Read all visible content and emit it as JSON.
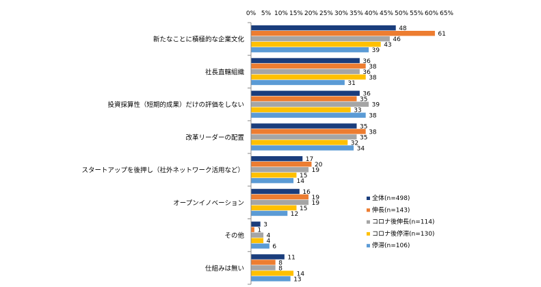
{
  "chart_data": {
    "type": "bar",
    "orientation": "horizontal",
    "categories": [
      "新たなことに積極的な企業文化",
      "社長直轄組織",
      "投資採算性（短期的成果）だけの評価をしない",
      "改革リーダーの配置",
      "スタートアップを後押し（社外ネットワーク活用など）",
      "オープンイノベーション",
      "その他",
      "仕組みは無い"
    ],
    "series": [
      {
        "name": "全体(n=498)",
        "color": "#1a3d7c",
        "values": [
          48,
          36,
          36,
          35,
          17,
          16,
          3,
          11
        ]
      },
      {
        "name": "伸長(n=143)",
        "color": "#ed7d31",
        "values": [
          61,
          38,
          35,
          38,
          20,
          19,
          1,
          8
        ]
      },
      {
        "name": "コロナ後伸長(n=114)",
        "color": "#a5a5a5",
        "values": [
          46,
          36,
          39,
          35,
          19,
          19,
          4,
          8
        ]
      },
      {
        "name": "コロナ後停滞(n=130)",
        "color": "#ffc000",
        "values": [
          43,
          38,
          33,
          32,
          15,
          15,
          4,
          14
        ]
      },
      {
        "name": "停滞(n=106)",
        "color": "#5b9bd5",
        "values": [
          39,
          31,
          38,
          34,
          14,
          12,
          6,
          13
        ]
      }
    ],
    "xlim": [
      0,
      65
    ],
    "xticks": [
      "0%",
      "5%",
      "10%",
      "15%",
      "20%",
      "25%",
      "30%",
      "35%",
      "40%",
      "45%",
      "50%",
      "55%",
      "60%",
      "65%"
    ],
    "grid": false,
    "legend_position": "inside-right"
  }
}
